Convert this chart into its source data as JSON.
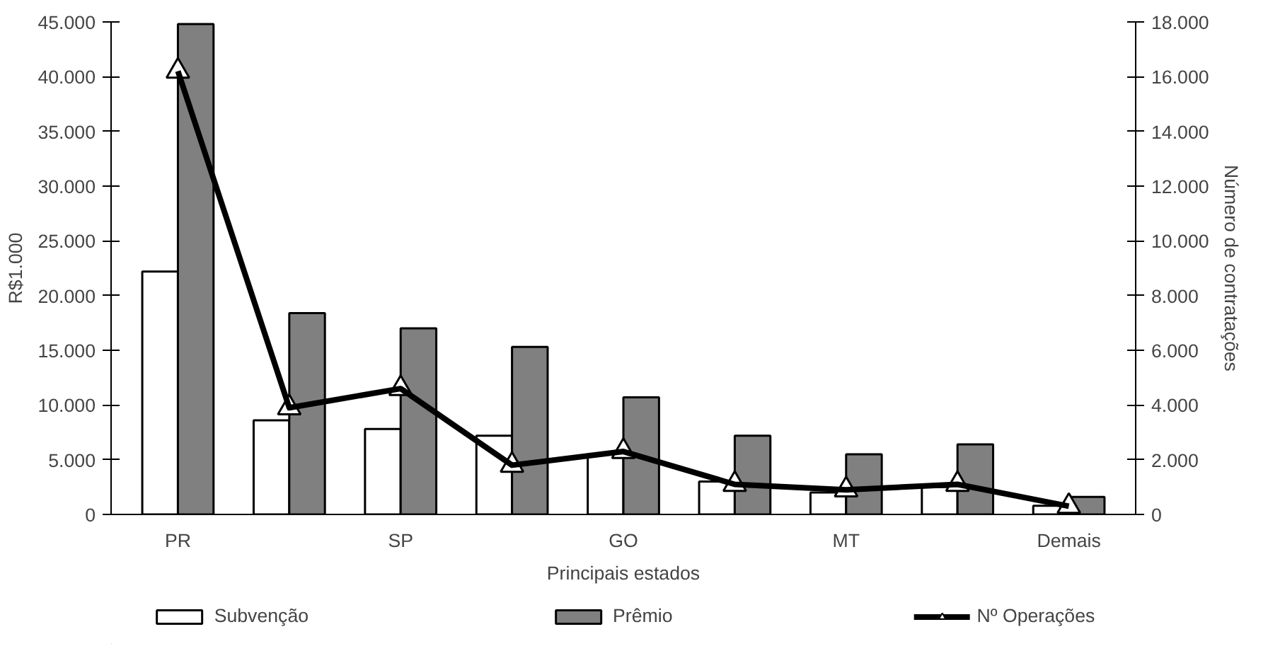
{
  "chart_data": {
    "type": "bar",
    "xlabel": "Principais estados",
    "ylabel": "R$1.000",
    "y2label": "Número de contratações",
    "categories": [
      "PR",
      null,
      "SP",
      null,
      "GO",
      null,
      "MT",
      null,
      "Demais"
    ],
    "series": [
      {
        "name": "Subvenção",
        "color": "#ffffff",
        "values": [
          22200,
          8600,
          7800,
          7200,
          5500,
          3000,
          2000,
          2500,
          800
        ]
      },
      {
        "name": "Prêmio",
        "color": "#808080",
        "values": [
          44800,
          18400,
          17000,
          15300,
          10700,
          7200,
          5500,
          6400,
          1600
        ]
      },
      {
        "name": "Nº Operações",
        "type": "line",
        "axis": "y2",
        "color": "#000000",
        "marker": "triangle",
        "values": [
          16200,
          3900,
          4600,
          1800,
          2300,
          1100,
          900,
          1100,
          300
        ]
      }
    ],
    "ylim": [
      0,
      45000
    ],
    "yticks": [
      0,
      {
        "value": 5000,
        "label": "5.000"
      },
      {
        "value": 10000,
        "label": "10.000"
      },
      {
        "value": 15000,
        "label": "15.000"
      },
      {
        "value": 20000,
        "label": "20.000"
      },
      {
        "value": 25000,
        "label": "25.000"
      },
      {
        "value": 30000,
        "label": "30.000"
      },
      {
        "value": 35000,
        "label": "35.000"
      },
      {
        "value": 40000,
        "label": "40.000"
      },
      {
        "value": 45000,
        "label": "45.000"
      }
    ],
    "y2lim": [
      0,
      18000
    ],
    "y2ticks": [
      0,
      {
        "value": 2000,
        "label": "2.000"
      },
      {
        "value": 4000,
        "label": "4.000"
      },
      {
        "value": 6000,
        "label": "6.000"
      },
      {
        "value": 8000,
        "label": "8.000"
      },
      {
        "value": 10000,
        "label": "10.000"
      },
      {
        "value": 12000,
        "label": "12.000"
      },
      {
        "value": 14000,
        "label": "14.000"
      },
      {
        "value": 16000,
        "label": "16.000"
      },
      {
        "value": 18000,
        "label": "18.000"
      }
    ],
    "grid": false,
    "legend": "bottom"
  }
}
